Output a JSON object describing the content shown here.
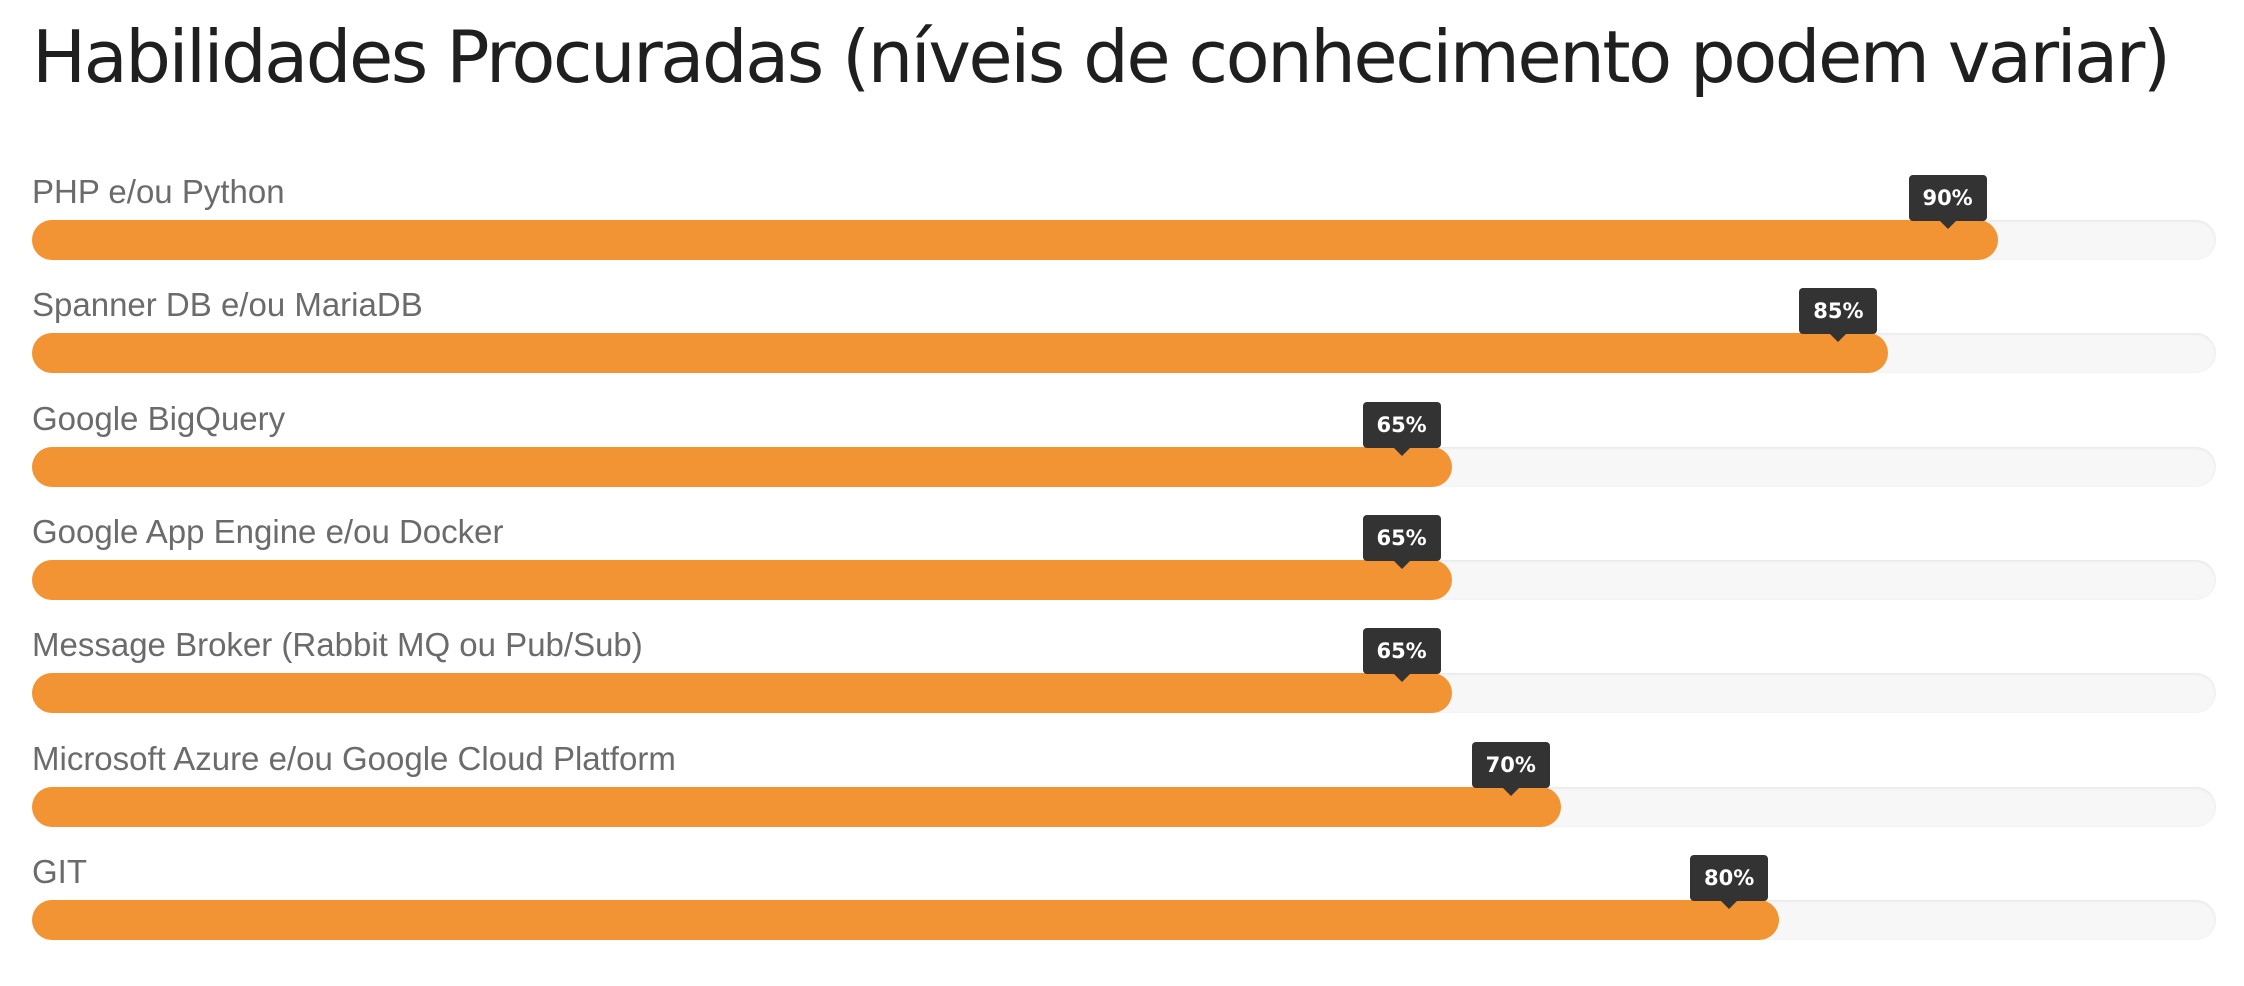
{
  "page": {
    "title": "Habilidades Procuradas (níveis de conhecimento podem variar)"
  },
  "colors": {
    "bar_fill": "#f29434",
    "bar_track": "#f7f7f7",
    "tooltip_bg": "#333333",
    "label_text": "#6b6b6b",
    "title_text": "#1f1f1f"
  },
  "chart_data": {
    "type": "bar",
    "orientation": "horizontal",
    "title": "Habilidades Procuradas (níveis de conhecimento podem variar)",
    "categories": [
      "PHP e/ou Python",
      "Spanner DB e/ou MariaDB",
      "Google BigQuery",
      "Google App Engine e/ou Docker",
      "Message Broker (Rabbit MQ ou Pub/Sub)",
      "Microsoft Azure e/ou Google Cloud Platform",
      "GIT"
    ],
    "values": [
      90,
      85,
      65,
      65,
      65,
      70,
      80
    ],
    "value_labels": [
      "90%",
      "85%",
      "65%",
      "65%",
      "65%",
      "70%",
      "80%"
    ],
    "xlim": [
      0,
      100
    ],
    "unit": "%",
    "grid": false,
    "legend": "none"
  }
}
